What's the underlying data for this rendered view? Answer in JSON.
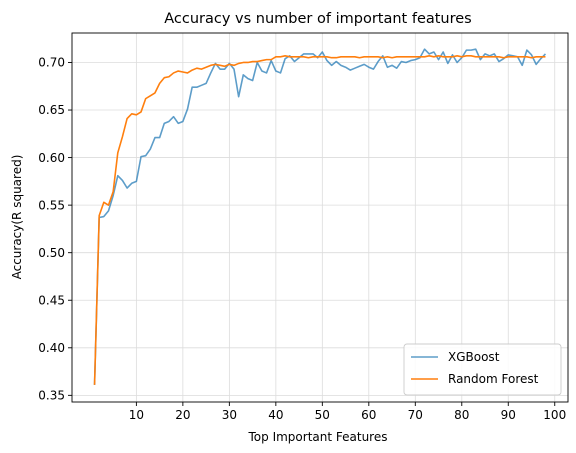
{
  "chart_data": {
    "type": "line",
    "title": "Accuracy vs number of important features",
    "xlabel": "Top Important Features",
    "ylabel": "Accuracy(R squared)",
    "xlim": [
      -3.85,
      102.85
    ],
    "ylim": [
      0.343,
      0.731
    ],
    "xticks": [
      10,
      20,
      30,
      40,
      50,
      60,
      70,
      80,
      90,
      100
    ],
    "yticks": [
      0.35,
      0.4,
      0.45,
      0.5,
      0.55,
      0.6,
      0.65,
      0.7
    ],
    "grid": true,
    "legend_position": "bottom-right",
    "x": [
      1,
      2,
      3,
      4,
      5,
      6,
      7,
      8,
      9,
      10,
      11,
      12,
      13,
      14,
      15,
      16,
      17,
      18,
      19,
      20,
      21,
      22,
      23,
      24,
      25,
      26,
      27,
      28,
      29,
      30,
      31,
      32,
      33,
      34,
      35,
      36,
      37,
      38,
      39,
      40,
      41,
      42,
      43,
      44,
      45,
      46,
      47,
      48,
      49,
      50,
      51,
      52,
      53,
      54,
      55,
      56,
      57,
      58,
      59,
      60,
      61,
      62,
      63,
      64,
      65,
      66,
      67,
      68,
      69,
      70,
      71,
      72,
      73,
      74,
      75,
      76,
      77,
      78,
      79,
      80,
      81,
      82,
      83,
      84,
      85,
      86,
      87,
      88,
      89,
      90,
      91,
      92,
      93,
      94,
      95,
      96,
      97,
      98
    ],
    "series": [
      {
        "name": "XGBoost",
        "color": "#1f77b4",
        "opacity": 0.72,
        "values": [
          0.361,
          0.537,
          0.538,
          0.544,
          0.56,
          0.581,
          0.576,
          0.568,
          0.573,
          0.575,
          0.601,
          0.602,
          0.609,
          0.621,
          0.621,
          0.636,
          0.638,
          0.643,
          0.636,
          0.638,
          0.651,
          0.674,
          0.674,
          0.676,
          0.678,
          0.689,
          0.699,
          0.693,
          0.693,
          0.699,
          0.693,
          0.664,
          0.687,
          0.683,
          0.681,
          0.7,
          0.691,
          0.689,
          0.702,
          0.691,
          0.689,
          0.704,
          0.707,
          0.701,
          0.705,
          0.709,
          0.709,
          0.709,
          0.705,
          0.711,
          0.702,
          0.697,
          0.701,
          0.697,
          0.695,
          0.692,
          0.694,
          0.696,
          0.698,
          0.695,
          0.693,
          0.701,
          0.707,
          0.695,
          0.697,
          0.694,
          0.701,
          0.7,
          0.702,
          0.703,
          0.705,
          0.714,
          0.709,
          0.711,
          0.703,
          0.711,
          0.699,
          0.708,
          0.7,
          0.705,
          0.713,
          0.713,
          0.714,
          0.703,
          0.709,
          0.707,
          0.709,
          0.701,
          0.704,
          0.708,
          0.707,
          0.706,
          0.697,
          0.713,
          0.708,
          0.698,
          0.704,
          0.709
        ]
      },
      {
        "name": "Random Forest",
        "color": "#ff7f0e",
        "opacity": 1,
        "values": [
          0.361,
          0.539,
          0.553,
          0.55,
          0.564,
          0.605,
          0.622,
          0.641,
          0.646,
          0.645,
          0.648,
          0.662,
          0.665,
          0.668,
          0.678,
          0.684,
          0.685,
          0.689,
          0.691,
          0.69,
          0.689,
          0.692,
          0.694,
          0.693,
          0.695,
          0.697,
          0.698,
          0.697,
          0.696,
          0.698,
          0.697,
          0.699,
          0.7,
          0.7,
          0.701,
          0.701,
          0.702,
          0.703,
          0.703,
          0.706,
          0.706,
          0.707,
          0.706,
          0.706,
          0.706,
          0.706,
          0.705,
          0.706,
          0.706,
          0.706,
          0.706,
          0.705,
          0.705,
          0.706,
          0.706,
          0.706,
          0.706,
          0.705,
          0.706,
          0.706,
          0.706,
          0.706,
          0.705,
          0.706,
          0.705,
          0.706,
          0.706,
          0.706,
          0.706,
          0.706,
          0.706,
          0.706,
          0.707,
          0.706,
          0.707,
          0.706,
          0.706,
          0.706,
          0.707,
          0.706,
          0.707,
          0.707,
          0.706,
          0.706,
          0.706,
          0.706,
          0.706,
          0.706,
          0.705,
          0.706,
          0.706,
          0.706,
          0.706,
          0.706,
          0.705,
          0.706,
          0.706,
          0.706
        ]
      }
    ]
  }
}
